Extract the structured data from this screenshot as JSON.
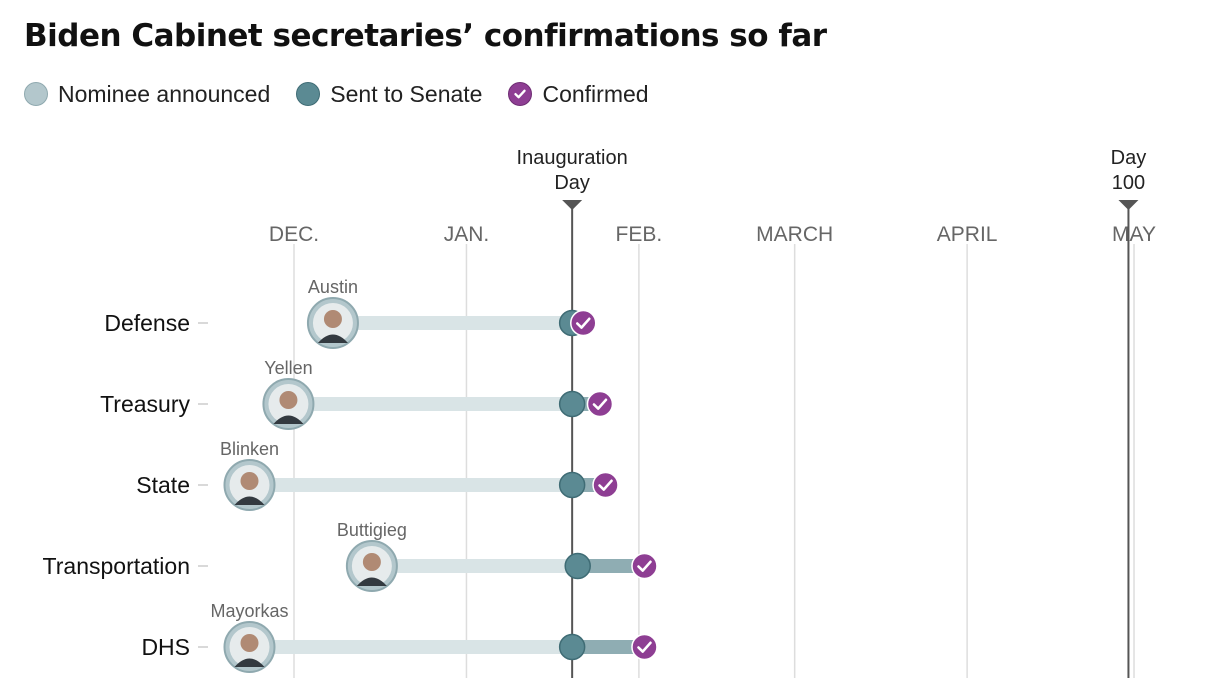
{
  "title": "Biden Cabinet secretaries’ confirmations so far",
  "legend": {
    "announced": "Nominee announced",
    "sent": "Sent to Senate",
    "confirmed": "Confirmed"
  },
  "colors": {
    "announced_fill": "#b3c7cc",
    "announced_bar": "#d9e4e6",
    "sent_fill": "#5b8a93",
    "sent_bar": "#8fadb3",
    "confirmed_fill": "#8e3e93",
    "gridline": "#dddddd",
    "event_line": "#555555"
  },
  "chart_data": {
    "type": "timeline",
    "title": "Biden Cabinet secretaries’ confirmations so far",
    "x_axis": {
      "type": "date",
      "range": [
        "2020-11-18",
        "2021-05-04"
      ],
      "ticks": [
        {
          "date": "2020-12-01",
          "label": "DEC."
        },
        {
          "date": "2021-01-01",
          "label": "JAN."
        },
        {
          "date": "2021-02-01",
          "label": "FEB."
        },
        {
          "date": "2021-03-01",
          "label": "MARCH"
        },
        {
          "date": "2021-04-01",
          "label": "APRIL"
        },
        {
          "date": "2021-05-01",
          "label": "MAY"
        }
      ]
    },
    "events": [
      {
        "date": "2021-01-20",
        "label_lines": [
          "Inauguration",
          "Day"
        ]
      },
      {
        "date": "2021-04-30",
        "label_lines": [
          "Day",
          "100"
        ]
      }
    ],
    "rows": [
      {
        "department": "Defense",
        "nominee": "Austin",
        "announced": "2020-12-08",
        "sent": "2021-01-20",
        "confirmed": "2021-01-22"
      },
      {
        "department": "Treasury",
        "nominee": "Yellen",
        "announced": "2020-11-30",
        "sent": "2021-01-20",
        "confirmed": "2021-01-25"
      },
      {
        "department": "State",
        "nominee": "Blinken",
        "announced": "2020-11-23",
        "sent": "2021-01-20",
        "confirmed": "2021-01-26"
      },
      {
        "department": "Transportation",
        "nominee": "Buttigieg",
        "announced": "2020-12-15",
        "sent": "2021-01-21",
        "confirmed": "2021-02-02"
      },
      {
        "department": "DHS",
        "nominee": "Mayorkas",
        "announced": "2020-11-23",
        "sent": "2021-01-20",
        "confirmed": "2021-02-02"
      }
    ],
    "grid": true
  }
}
